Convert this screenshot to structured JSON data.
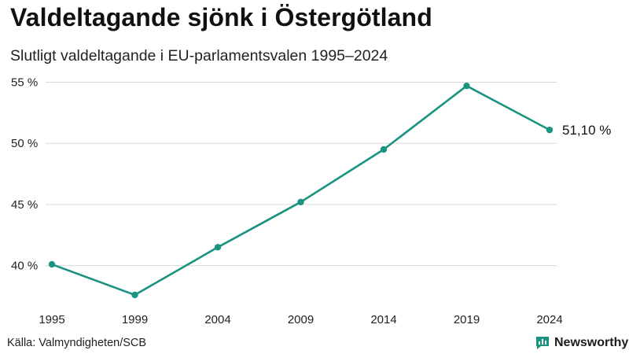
{
  "title": "Valdeltagande sjönk i Östergötland",
  "subtitle": "Slutligt valdeltagande i EU-parlamentsvalen 1995–2024",
  "source": "Källa: Valmyndigheten/SCB",
  "brand": "Newsworthy",
  "colors": {
    "line": "#1a9381",
    "grid": "#d9d9d9",
    "brand_icon": "#1a9381"
  },
  "chart_data": {
    "type": "line",
    "title": "Valdeltagande sjönk i Östergötland",
    "subtitle": "Slutligt valdeltagande i EU-parlamentsvalen 1995–2024",
    "xlabel": "",
    "ylabel": "",
    "x": [
      "1995",
      "1999",
      "2004",
      "2009",
      "2014",
      "2019",
      "2024"
    ],
    "series": [
      {
        "name": "Valdeltagande",
        "values": [
          40.1,
          37.6,
          41.5,
          45.2,
          49.5,
          54.7,
          51.1
        ]
      }
    ],
    "yticks": [
      40,
      45,
      50,
      55
    ],
    "ytick_labels": [
      "40 %",
      "45 %",
      "50 %",
      "55 %"
    ],
    "ylim": [
      36.5,
      56
    ],
    "end_label": "51,10 %",
    "grid": true,
    "legend": "none"
  }
}
